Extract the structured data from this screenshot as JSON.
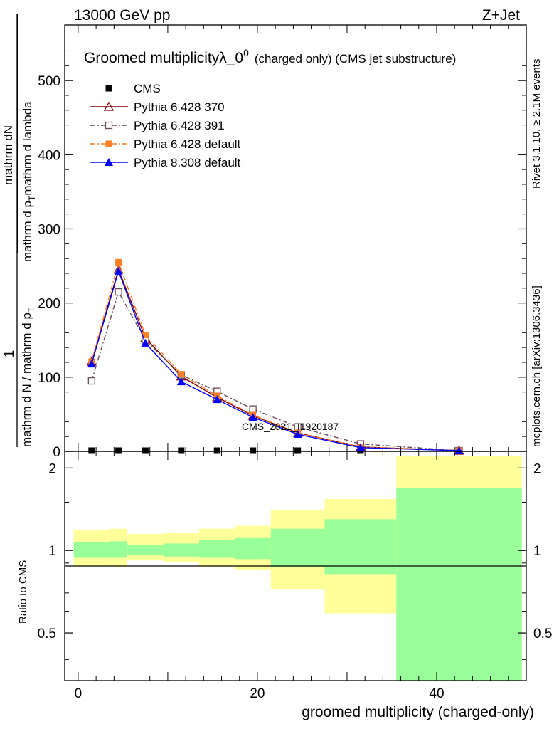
{
  "header": {
    "left": "13000 GeV pp",
    "right": "Z+Jet"
  },
  "side_labels": {
    "rivet": "Rivet 3.1.10, ≥ 2.1M events",
    "mcplots": "mcplots.cern.ch [arXiv:1306.3436]"
  },
  "watermark": "CMS_2021_I1920187",
  "chart_data": [
    {
      "type": "line",
      "title_main": "Groomed multiplicityλ_0",
      "title_sup": "0",
      "title_paren": "(charged only) (CMS jet substructure)",
      "ylabel_num": "mathrm dN",
      "ylabel_den": "mathrm d p",
      "ylabel_den_sub": "T",
      "ylabel_den_rest": "mathrm d lambda",
      "ylabel_pre_num": "1",
      "ylabel_pre_den": "mathrm d N / mathrm d p",
      "ylabel_pre_den_sub": "T",
      "ylim": [
        0,
        575
      ],
      "yticks": [
        0,
        100,
        200,
        300,
        400,
        500
      ],
      "xlim": [
        -1.5,
        50
      ],
      "legend_position": "top-left",
      "series": [
        {
          "name": "CMS",
          "color": "#000000",
          "marker": "square-filled",
          "x": [
            1.5,
            4.5,
            7.5,
            11.5,
            15.5,
            19.5,
            24.5,
            31.5,
            42.5
          ],
          "y": [
            0,
            0,
            0,
            0,
            0,
            0,
            0,
            0,
            0
          ]
        },
        {
          "name": "Pythia 6.428 370",
          "color": "#7f0000",
          "marker": "triangle-open",
          "dash": "",
          "x": [
            1.5,
            4.5,
            7.5,
            11.5,
            15.5,
            19.5,
            24.5,
            31.5,
            42.5
          ],
          "y": [
            121,
            245,
            153,
            101,
            73,
            48,
            25,
            6,
            1
          ]
        },
        {
          "name": "Pythia 6.428 391",
          "color": "#6b4a55",
          "marker": "square-open",
          "dash": "7,3,2,3",
          "x": [
            1.5,
            4.5,
            7.5,
            11.5,
            15.5,
            19.5,
            24.5,
            31.5,
            42.5
          ],
          "y": [
            95,
            215,
            150,
            103,
            81,
            57,
            33,
            10,
            1
          ]
        },
        {
          "name": "Pythia 6.428 default",
          "color": "#ff7f27",
          "marker": "square-filled",
          "dash": "7,3,2,3",
          "x": [
            1.5,
            4.5,
            7.5,
            11.5,
            15.5,
            19.5,
            24.5,
            31.5,
            42.5
          ],
          "y": [
            121,
            255,
            157,
            104,
            75,
            49,
            25,
            6,
            1
          ]
        },
        {
          "name": "Pythia 8.308 default",
          "color": "#0000ff",
          "marker": "triangle-filled",
          "dash": "",
          "x": [
            1.5,
            4.5,
            7.5,
            11.5,
            15.5,
            19.5,
            24.5,
            31.5,
            42.5
          ],
          "y": [
            118,
            243,
            146,
            94,
            70,
            46,
            23,
            5,
            1
          ]
        }
      ]
    },
    {
      "type": "area",
      "ylabel": "Ratio to CMS",
      "xlabel": "groomed multiplicity (charged-only)",
      "yscale": "log",
      "ylim": [
        0.335,
        2.3
      ],
      "yticks": [
        0.5,
        1,
        2
      ],
      "xlim": [
        -1.5,
        50
      ],
      "xticks": [
        0,
        20,
        40
      ],
      "bands": [
        {
          "x0": -0.5,
          "x1": 3.5,
          "yellow": [
            0.88,
            1.19
          ],
          "green": [
            0.94,
            1.07
          ]
        },
        {
          "x0": 3.5,
          "x1": 5.5,
          "yellow": [
            0.87,
            1.2
          ],
          "green": [
            0.94,
            1.08
          ]
        },
        {
          "x0": 5.5,
          "x1": 9.5,
          "yellow": [
            0.92,
            1.15
          ],
          "green": [
            0.96,
            1.05
          ]
        },
        {
          "x0": 9.5,
          "x1": 13.5,
          "yellow": [
            0.91,
            1.16
          ],
          "green": [
            0.95,
            1.06
          ]
        },
        {
          "x0": 13.5,
          "x1": 17.5,
          "yellow": [
            0.87,
            1.2
          ],
          "green": [
            0.94,
            1.09
          ]
        },
        {
          "x0": 17.5,
          "x1": 21.5,
          "yellow": [
            0.85,
            1.23
          ],
          "green": [
            0.93,
            1.11
          ]
        },
        {
          "x0": 21.5,
          "x1": 27.5,
          "yellow": [
            0.72,
            1.41
          ],
          "green": [
            0.87,
            1.2
          ]
        },
        {
          "x0": 27.5,
          "x1": 35.5,
          "yellow": [
            0.59,
            1.54
          ],
          "green": [
            0.82,
            1.3
          ]
        },
        {
          "x0": 35.5,
          "x1": 49.5,
          "yellow": [
            0.335,
            2.21
          ],
          "green": [
            0.335,
            1.69
          ]
        }
      ]
    }
  ]
}
